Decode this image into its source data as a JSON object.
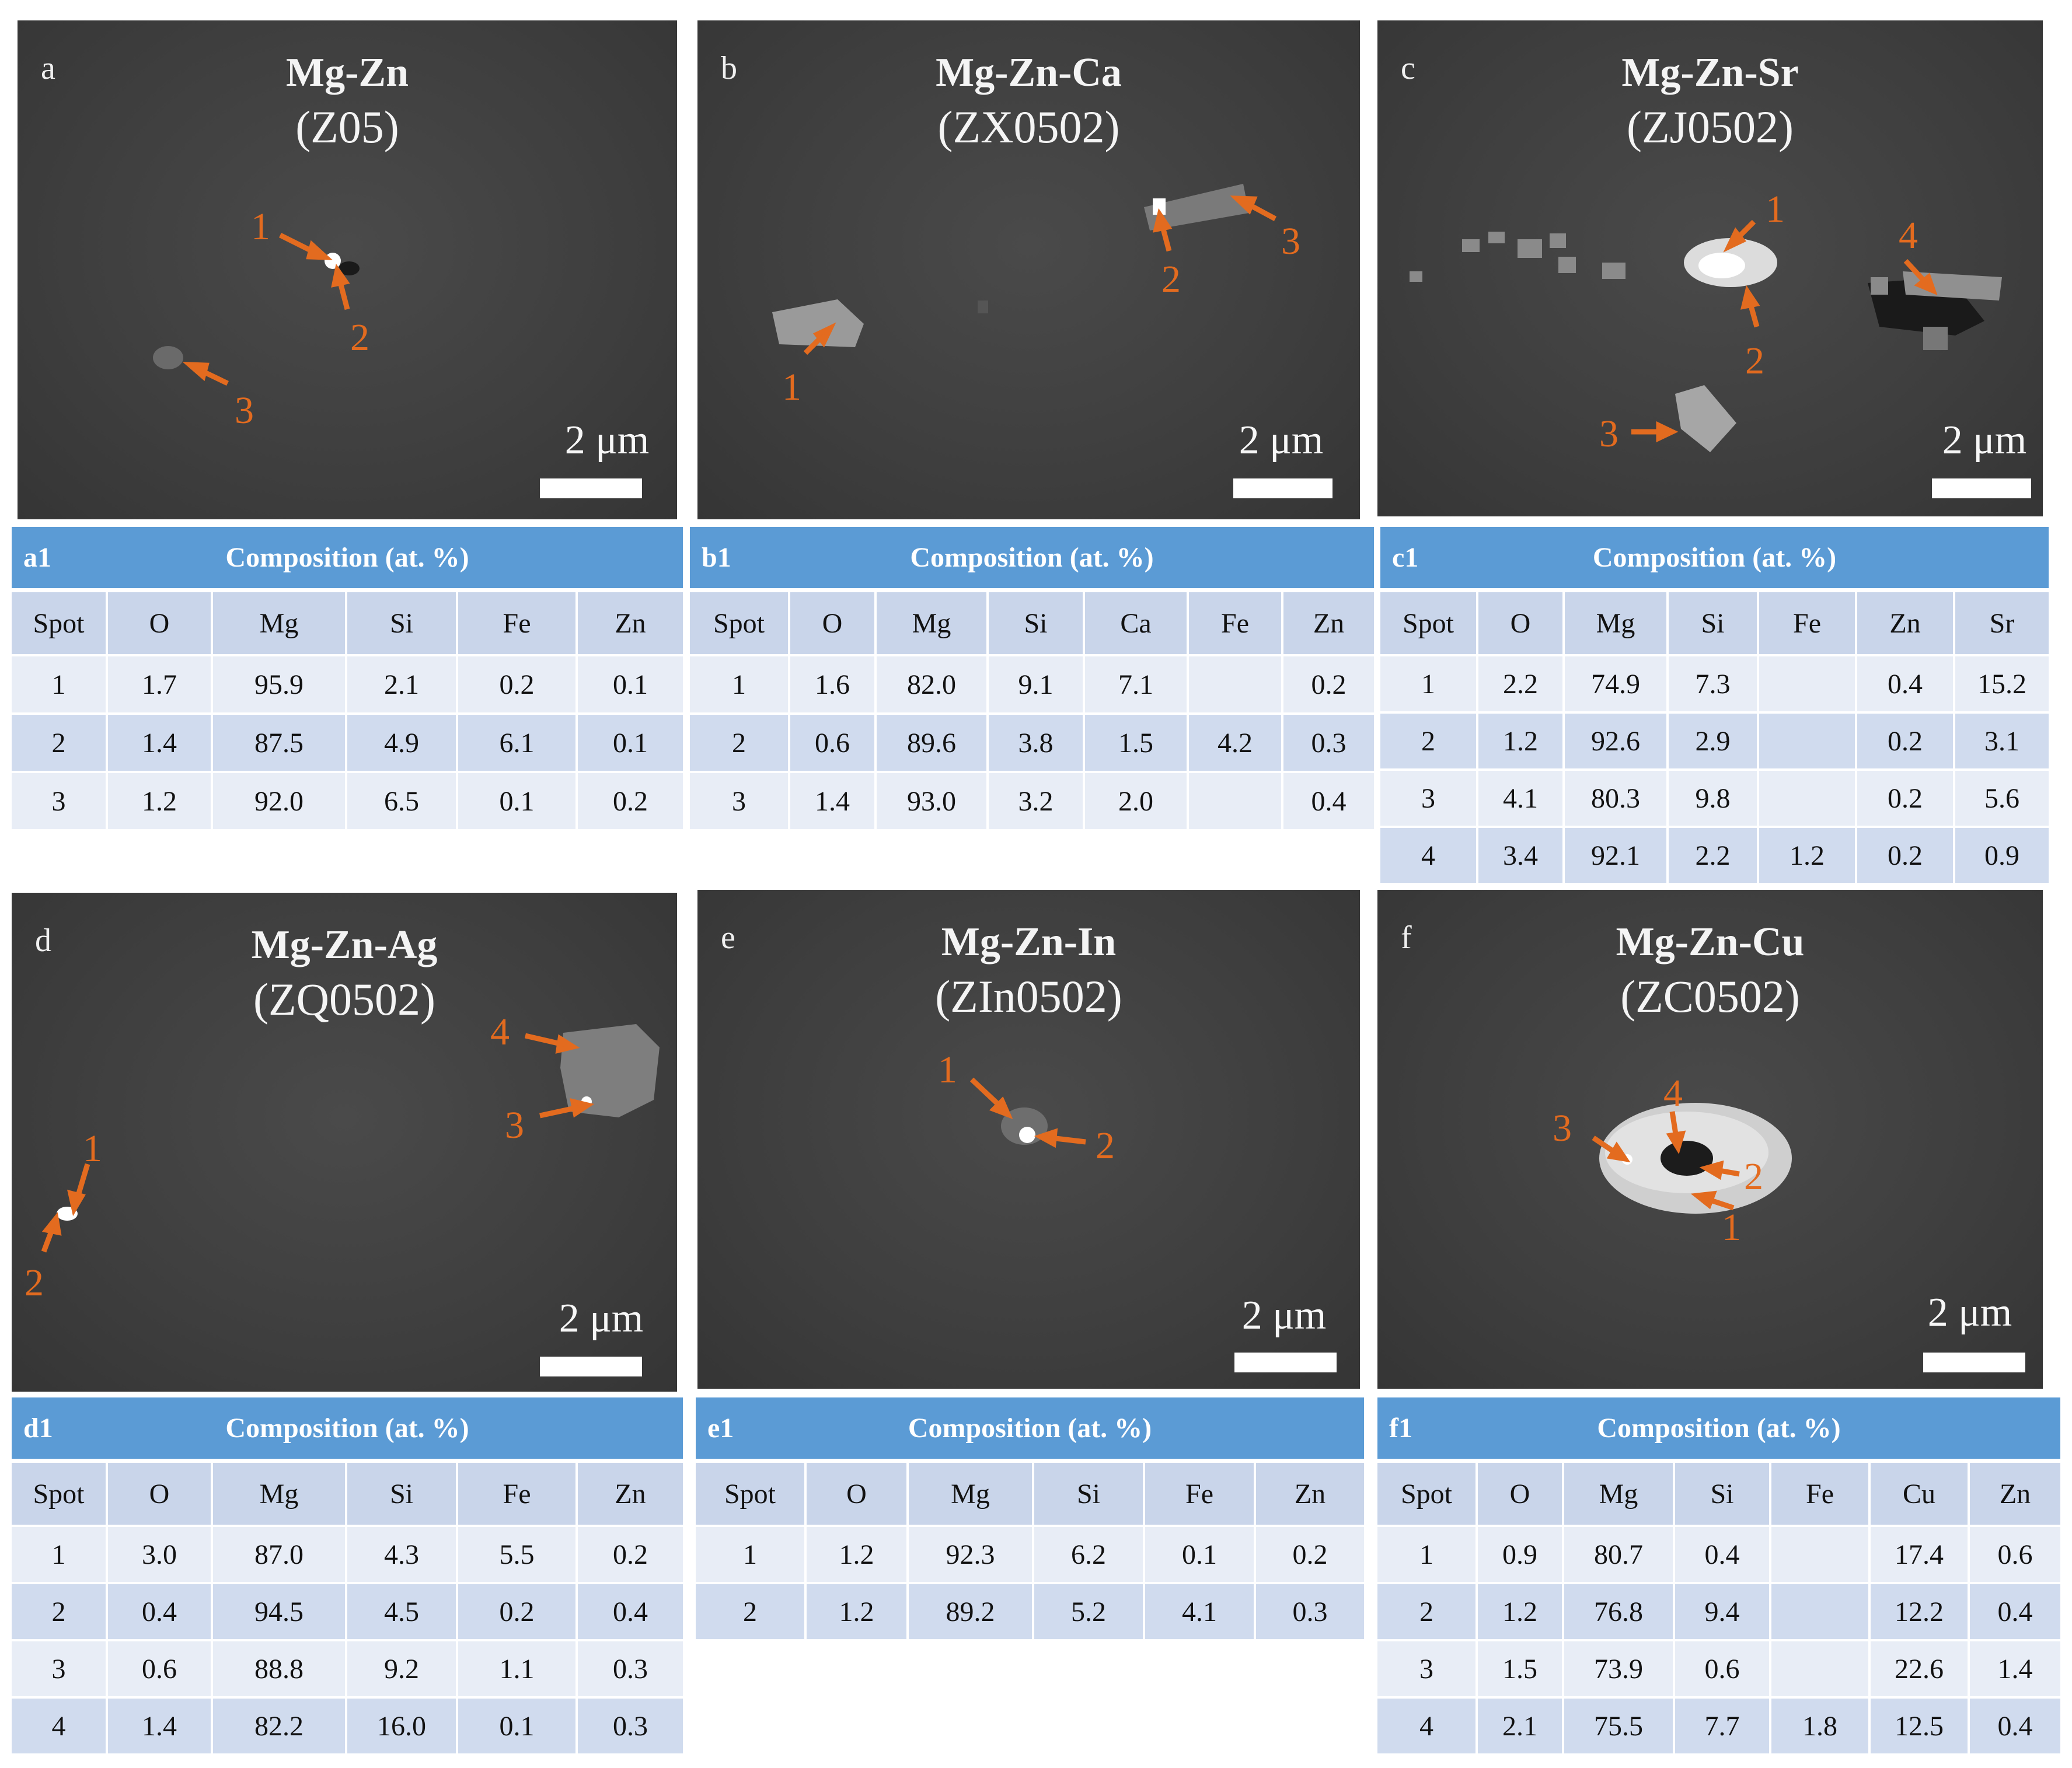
{
  "scale_label": "2 μm",
  "composition_label": "Composition (at. %)",
  "panels": {
    "a": {
      "letter": "a",
      "title": "Mg-Zn",
      "code": "(Z05)",
      "markers": [
        "1",
        "2",
        "3"
      ],
      "table": {
        "id": "a1",
        "headers": [
          "Spot",
          "O",
          "Mg",
          "Si",
          "Fe",
          "Zn"
        ],
        "rows": [
          [
            "1",
            "1.7",
            "95.9",
            "2.1",
            "0.2",
            "0.1"
          ],
          [
            "2",
            "1.4",
            "87.5",
            "4.9",
            "6.1",
            "0.1"
          ],
          [
            "3",
            "1.2",
            "92.0",
            "6.5",
            "0.1",
            "0.2"
          ]
        ]
      }
    },
    "b": {
      "letter": "b",
      "title": "Mg-Zn-Ca",
      "code": "(ZX0502)",
      "markers": [
        "1",
        "2",
        "3"
      ],
      "table": {
        "id": "b1",
        "headers": [
          "Spot",
          "O",
          "Mg",
          "Si",
          "Ca",
          "Fe",
          "Zn"
        ],
        "rows": [
          [
            "1",
            "1.6",
            "82.0",
            "9.1",
            "7.1",
            "",
            "0.2"
          ],
          [
            "2",
            "0.6",
            "89.6",
            "3.8",
            "1.5",
            "4.2",
            "0.3"
          ],
          [
            "3",
            "1.4",
            "93.0",
            "3.2",
            "2.0",
            "",
            "0.4"
          ]
        ]
      }
    },
    "c": {
      "letter": "c",
      "title": "Mg-Zn-Sr",
      "code": "(ZJ0502)",
      "markers": [
        "1",
        "2",
        "3",
        "4"
      ],
      "table": {
        "id": "c1",
        "headers": [
          "Spot",
          "O",
          "Mg",
          "Si",
          "Fe",
          "Zn",
          "Sr"
        ],
        "rows": [
          [
            "1",
            "2.2",
            "74.9",
            "7.3",
            "",
            "0.4",
            "15.2"
          ],
          [
            "2",
            "1.2",
            "92.6",
            "2.9",
            "",
            "0.2",
            "3.1"
          ],
          [
            "3",
            "4.1",
            "80.3",
            "9.8",
            "",
            "0.2",
            "5.6"
          ],
          [
            "4",
            "3.4",
            "92.1",
            "2.2",
            "1.2",
            "0.2",
            "0.9"
          ]
        ]
      }
    },
    "d": {
      "letter": "d",
      "title": "Mg-Zn-Ag",
      "code": "(ZQ0502)",
      "markers": [
        "1",
        "2",
        "3",
        "4"
      ],
      "table": {
        "id": "d1",
        "headers": [
          "Spot",
          "O",
          "Mg",
          "Si",
          "Fe",
          "Zn"
        ],
        "rows": [
          [
            "1",
            "3.0",
            "87.0",
            "4.3",
            "5.5",
            "0.2"
          ],
          [
            "2",
            "0.4",
            "94.5",
            "4.5",
            "0.2",
            "0.4"
          ],
          [
            "3",
            "0.6",
            "88.8",
            "9.2",
            "1.1",
            "0.3"
          ],
          [
            "4",
            "1.4",
            "82.2",
            "16.0",
            "0.1",
            "0.3"
          ]
        ]
      }
    },
    "e": {
      "letter": "e",
      "title": "Mg-Zn-In",
      "code": "(ZIn0502)",
      "markers": [
        "1",
        "2"
      ],
      "table": {
        "id": "e1",
        "headers": [
          "Spot",
          "O",
          "Mg",
          "Si",
          "Fe",
          "Zn"
        ],
        "rows": [
          [
            "1",
            "1.2",
            "92.3",
            "6.2",
            "0.1",
            "0.2"
          ],
          [
            "2",
            "1.2",
            "89.2",
            "5.2",
            "4.1",
            "0.3"
          ]
        ]
      }
    },
    "f": {
      "letter": "f",
      "title": "Mg-Zn-Cu",
      "code": "(ZC0502)",
      "markers": [
        "1",
        "2",
        "3",
        "4"
      ],
      "table": {
        "id": "f1",
        "headers": [
          "Spot",
          "O",
          "Mg",
          "Si",
          "Fe",
          "Cu",
          "Zn"
        ],
        "rows": [
          [
            "1",
            "0.9",
            "80.7",
            "0.4",
            "",
            "17.4",
            "0.6"
          ],
          [
            "2",
            "1.2",
            "76.8",
            "9.4",
            "",
            "12.2",
            "0.4"
          ],
          [
            "3",
            "1.5",
            "73.9",
            "0.6",
            "",
            "22.6",
            "1.4"
          ],
          [
            "4",
            "2.1",
            "75.5",
            "7.7",
            "1.8",
            "12.5",
            "0.4"
          ]
        ]
      }
    }
  }
}
